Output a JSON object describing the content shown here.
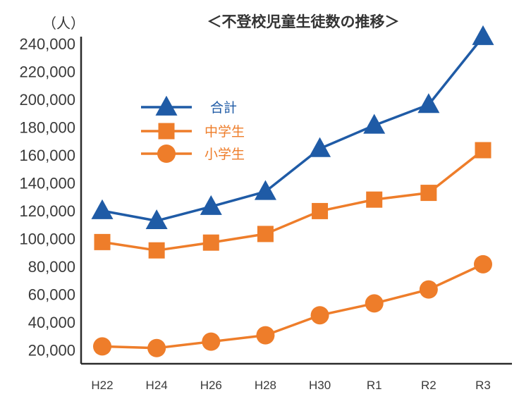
{
  "chart_data": {
    "type": "line",
    "title": "＜不登校児童生徒数の推移＞",
    "unit_label": "（人）",
    "xlabel": "",
    "ylabel": "（人）",
    "categories": [
      "H22",
      "H24",
      "H26",
      "H28",
      "H30",
      "R1",
      "R2",
      "R3"
    ],
    "y_ticks": [
      20000,
      40000,
      60000,
      80000,
      100000,
      120000,
      140000,
      160000,
      180000,
      200000,
      220000,
      240000
    ],
    "y_tick_labels": [
      "20,000",
      "40,000",
      "60,000",
      "80,000",
      "100,000",
      "120,000",
      "140,000",
      "160,000",
      "180,000",
      "200,000",
      "220,000",
      "240,000"
    ],
    "ylim": [
      10000,
      245000
    ],
    "grid": false,
    "legend_position": "upper-left",
    "series": [
      {
        "name": "合計",
        "marker": "triangle",
        "color": "#1f5ba6",
        "values": [
          119891,
          112689,
          122897,
          133683,
          164528,
          181272,
          196127,
          244940
        ]
      },
      {
        "name": "中学生",
        "marker": "square",
        "color": "#ee7d2a",
        "values": [
          97428,
          91446,
          97033,
          103235,
          119687,
          127922,
          132777,
          163442
        ]
      },
      {
        "name": "小学生",
        "marker": "circle",
        "color": "#ee7d2a",
        "values": [
          22463,
          21243,
          25864,
          30448,
          44841,
          53350,
          63350,
          81498
        ]
      }
    ]
  }
}
